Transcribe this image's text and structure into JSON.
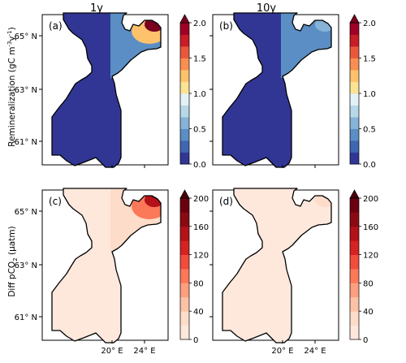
{
  "figure": {
    "columns": [
      "1y",
      "10y"
    ],
    "lat_ticks": [
      "65° N",
      "63° N",
      "61° N"
    ],
    "lon_ticks": [
      "20° E",
      "24° E"
    ],
    "rows": [
      {
        "ylabel_main": "Remineralization (gC m",
        "ylabel_sup1": "-3",
        "ylabel_mid": "y",
        "ylabel_sup2": "-1",
        "ylabel_end": ")",
        "colorbar": {
          "ticks": [
            "2.0",
            "1.5",
            "1.0",
            "0.5",
            "0.0"
          ],
          "range": [
            0,
            2.0
          ],
          "extend": "max",
          "colormap": "RdYlBu_r",
          "colors": [
            "#313695",
            "#3f66b0",
            "#5a8ec4",
            "#86b3d7",
            "#b7d8e8",
            "#e2f2f6",
            "#fbe393",
            "#fdc26b",
            "#f98e52",
            "#e9583c",
            "#c81d27",
            "#9f0126"
          ],
          "extend_color": "#7a0020"
        },
        "panels": [
          {
            "label": "(a)",
            "south_value": 0.05,
            "north_value": 0.4,
            "hotspot_value": 2.0
          },
          {
            "label": "(b)",
            "south_value": 0.05,
            "north_value": 0.4,
            "hotspot_value": 0.55
          }
        ]
      },
      {
        "ylabel_main": "Diff pCO",
        "ylabel_sub": "2",
        "ylabel_end": " (µatm)",
        "colorbar": {
          "ticks": [
            "200",
            "160",
            "120",
            "80",
            "40",
            "0"
          ],
          "range": [
            0,
            200
          ],
          "extend": "max",
          "colormap": "Reds",
          "colors": [
            "#fee8dc",
            "#fddcc9",
            "#fcc2a5",
            "#fc9f7f",
            "#fb7858",
            "#f14c3c",
            "#d52321",
            "#b31218",
            "#8b0a12",
            "#6b0010"
          ],
          "extend_color": "#4a000c"
        },
        "panels": [
          {
            "label": "(c)",
            "south_value": 5,
            "north_value": 30,
            "hotspot_value": 150
          },
          {
            "label": "(d)",
            "south_value": 3,
            "north_value": 10,
            "hotspot_value": 20
          }
        ]
      }
    ]
  }
}
